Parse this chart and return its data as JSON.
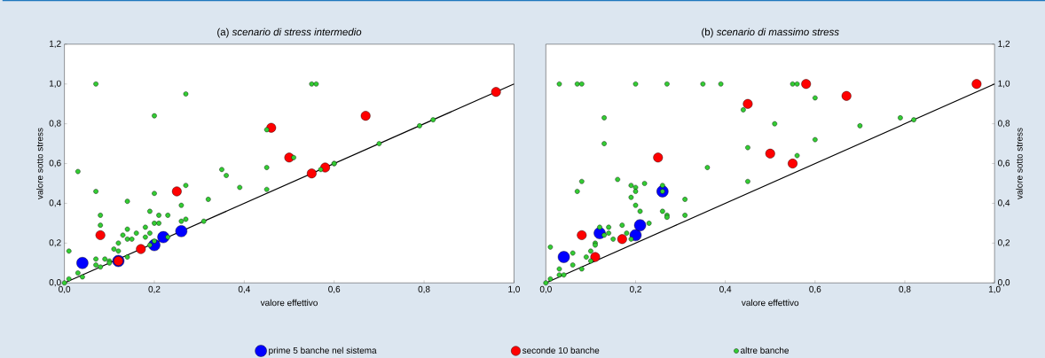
{
  "chart_data": [
    {
      "type": "scatter",
      "title": "(a) *scenario di stress intermedio*",
      "xlabel": "valore effettivo",
      "ylabel": "valore sotto stress",
      "marker": "circle",
      "legend": "bottom",
      "xlim": [
        0,
        1
      ],
      "ylim": [
        0,
        1.2
      ],
      "xticks": [
        {
          "value": 0,
          "label": "0,0"
        },
        {
          "value": 0.2,
          "label": "0,2"
        },
        {
          "value": 0.4,
          "label": "0,4"
        },
        {
          "value": 0.6,
          "label": "0,6"
        },
        {
          "value": 0.8,
          "label": "0,8"
        },
        {
          "value": 1,
          "label": "1,0"
        }
      ],
      "yticks": [
        {
          "value": 0,
          "label": "0,0"
        },
        {
          "value": 0.2,
          "label": "0,2"
        },
        {
          "value": 0.4,
          "label": "0,4"
        },
        {
          "value": 0.6,
          "label": "0,6"
        },
        {
          "value": 0.8,
          "label": "0,8"
        },
        {
          "value": 1,
          "label": "1,0"
        },
        {
          "value": 1.2,
          "label": "1,2"
        }
      ],
      "series": [
        {
          "name": "prime 5 banche nel sistema",
          "color": "#0000ff",
          "x": [
            0.04,
            0.12,
            0.2,
            0.22,
            0.26
          ],
          "values": [
            0.1,
            0.11,
            0.19,
            0.23,
            0.26
          ]
        },
        {
          "name": "seconde 10 banche",
          "color": "#ff0000",
          "x": [
            0.08,
            0.12,
            0.17,
            0.25,
            0.46,
            0.5,
            0.55,
            0.58,
            0.67,
            0.96
          ],
          "values": [
            0.24,
            0.11,
            0.17,
            0.46,
            0.78,
            0.63,
            0.55,
            0.58,
            0.84,
            0.96
          ]
        },
        {
          "name": "altre banche",
          "color": "#33cc33",
          "x": [
            0.07,
            0.27,
            0.2,
            0.45,
            0.03,
            0.45,
            0.35,
            0.36,
            0.39,
            0.27,
            0.45,
            0.07,
            0.2,
            0.26,
            0.14,
            0.32,
            0.19,
            0.21,
            0.23,
            0.08,
            0.26,
            0.27,
            0.31,
            0.2,
            0.21,
            0.08,
            0.18,
            0.14,
            0.16,
            0.19,
            0.18,
            0.13,
            0.14,
            0.15,
            0.23,
            0.12,
            0.11,
            0.12,
            0.2,
            0.19,
            0.01,
            0.07,
            0.09,
            0.1,
            0.1,
            0.14,
            0.07,
            0.08,
            0.03,
            0.04,
            0.01,
            0.0,
            0.55,
            0.56,
            0.51,
            0.57,
            0.6,
            0.6,
            0.7,
            0.79,
            0.82
          ],
          "values": [
            1.0,
            0.95,
            0.84,
            0.77,
            0.56,
            0.58,
            0.57,
            0.54,
            0.48,
            0.49,
            0.47,
            0.46,
            0.45,
            0.39,
            0.41,
            0.42,
            0.36,
            0.34,
            0.34,
            0.34,
            0.31,
            0.32,
            0.31,
            0.3,
            0.3,
            0.29,
            0.28,
            0.27,
            0.25,
            0.25,
            0.23,
            0.24,
            0.22,
            0.22,
            0.23,
            0.2,
            0.17,
            0.16,
            0.21,
            0.19,
            0.16,
            0.12,
            0.12,
            0.11,
            0.1,
            0.13,
            0.09,
            0.08,
            0.05,
            0.03,
            0.02,
            0.0,
            1.0,
            1.0,
            0.63,
            0.57,
            0.6,
            0.6,
            0.7,
            0.79,
            0.82
          ]
        },
        {
          "type": "line",
          "color": "#000000",
          "marker": "none",
          "x": [
            0,
            1
          ],
          "values": [
            0,
            1
          ]
        }
      ]
    },
    {
      "type": "scatter",
      "title": "(b) *scenario di massimo stress*",
      "xlabel": "valore effettivo",
      "ylabel": "valore sotto stress",
      "marker": "circle",
      "xlim": [
        0,
        1
      ],
      "ylim": [
        0,
        1.2
      ],
      "xticks": [
        {
          "value": 0,
          "label": "0,0"
        },
        {
          "value": 0.2,
          "label": "0,2"
        },
        {
          "value": 0.4,
          "label": "0,4"
        },
        {
          "value": 0.6,
          "label": "0,6"
        },
        {
          "value": 0.8,
          "label": "0,8"
        },
        {
          "value": 1,
          "label": "1,0"
        }
      ],
      "yticks": [
        {
          "value": 0,
          "label": "0,0"
        },
        {
          "value": 0.2,
          "label": "0,2"
        },
        {
          "value": 0.4,
          "label": "0,4"
        },
        {
          "value": 0.6,
          "label": "0,6"
        },
        {
          "value": 0.8,
          "label": "0,8"
        },
        {
          "value": 1,
          "label": "1,0"
        },
        {
          "value": 1.2,
          "label": "1,2"
        }
      ],
      "series": [
        {
          "color": "#0000ff",
          "x": [
            0.04,
            0.12,
            0.2,
            0.21,
            0.26
          ],
          "values": [
            0.13,
            0.25,
            0.24,
            0.29,
            0.46
          ]
        },
        {
          "color": "#ff0000",
          "x": [
            0.08,
            0.11,
            0.17,
            0.25,
            0.45,
            0.5,
            0.55,
            0.58,
            0.67,
            0.96
          ],
          "values": [
            0.24,
            0.13,
            0.22,
            0.63,
            0.9,
            0.65,
            0.6,
            1.0,
            0.94,
            1.0
          ]
        },
        {
          "color": "#33cc33",
          "x": [
            0.03,
            0.07,
            0.08,
            0.2,
            0.27,
            0.35,
            0.39,
            0.55,
            0.56,
            0.6,
            0.13,
            0.13,
            0.44,
            0.45,
            0.36,
            0.45,
            0.16,
            0.08,
            0.07,
            0.19,
            0.2,
            0.2,
            0.22,
            0.26,
            0.26,
            0.19,
            0.31,
            0.2,
            0.21,
            0.26,
            0.27,
            0.27,
            0.31,
            0.23,
            0.17,
            0.12,
            0.14,
            0.13,
            0.14,
            0.15,
            0.18,
            0.19,
            0.11,
            0.11,
            0.1,
            0.06,
            0.01,
            0.09,
            0.1,
            0.06,
            0.08,
            0.03,
            0.03,
            0.04,
            0.01,
            0.0,
            0.51,
            0.7,
            0.79,
            0.82,
            0.6,
            0.56
          ],
          "values": [
            1.0,
            1.0,
            1.0,
            1.0,
            1.0,
            1.0,
            1.0,
            1.0,
            1.0,
            0.93,
            0.83,
            0.7,
            0.87,
            0.68,
            0.58,
            0.51,
            0.52,
            0.51,
            0.46,
            0.49,
            0.48,
            0.46,
            0.5,
            0.49,
            0.46,
            0.43,
            0.42,
            0.39,
            0.36,
            0.36,
            0.34,
            0.33,
            0.34,
            0.3,
            0.29,
            0.28,
            0.28,
            0.24,
            0.25,
            0.22,
            0.25,
            0.22,
            0.2,
            0.19,
            0.16,
            0.15,
            0.18,
            0.13,
            0.11,
            0.09,
            0.07,
            0.07,
            0.04,
            0.04,
            0.02,
            0.0,
            0.8,
            0.79,
            0.83,
            0.82,
            0.72,
            0.64
          ]
        },
        {
          "type": "line",
          "color": "#000000",
          "marker": "none",
          "x": [
            0,
            1
          ],
          "values": [
            0,
            1
          ]
        }
      ]
    }
  ]
}
